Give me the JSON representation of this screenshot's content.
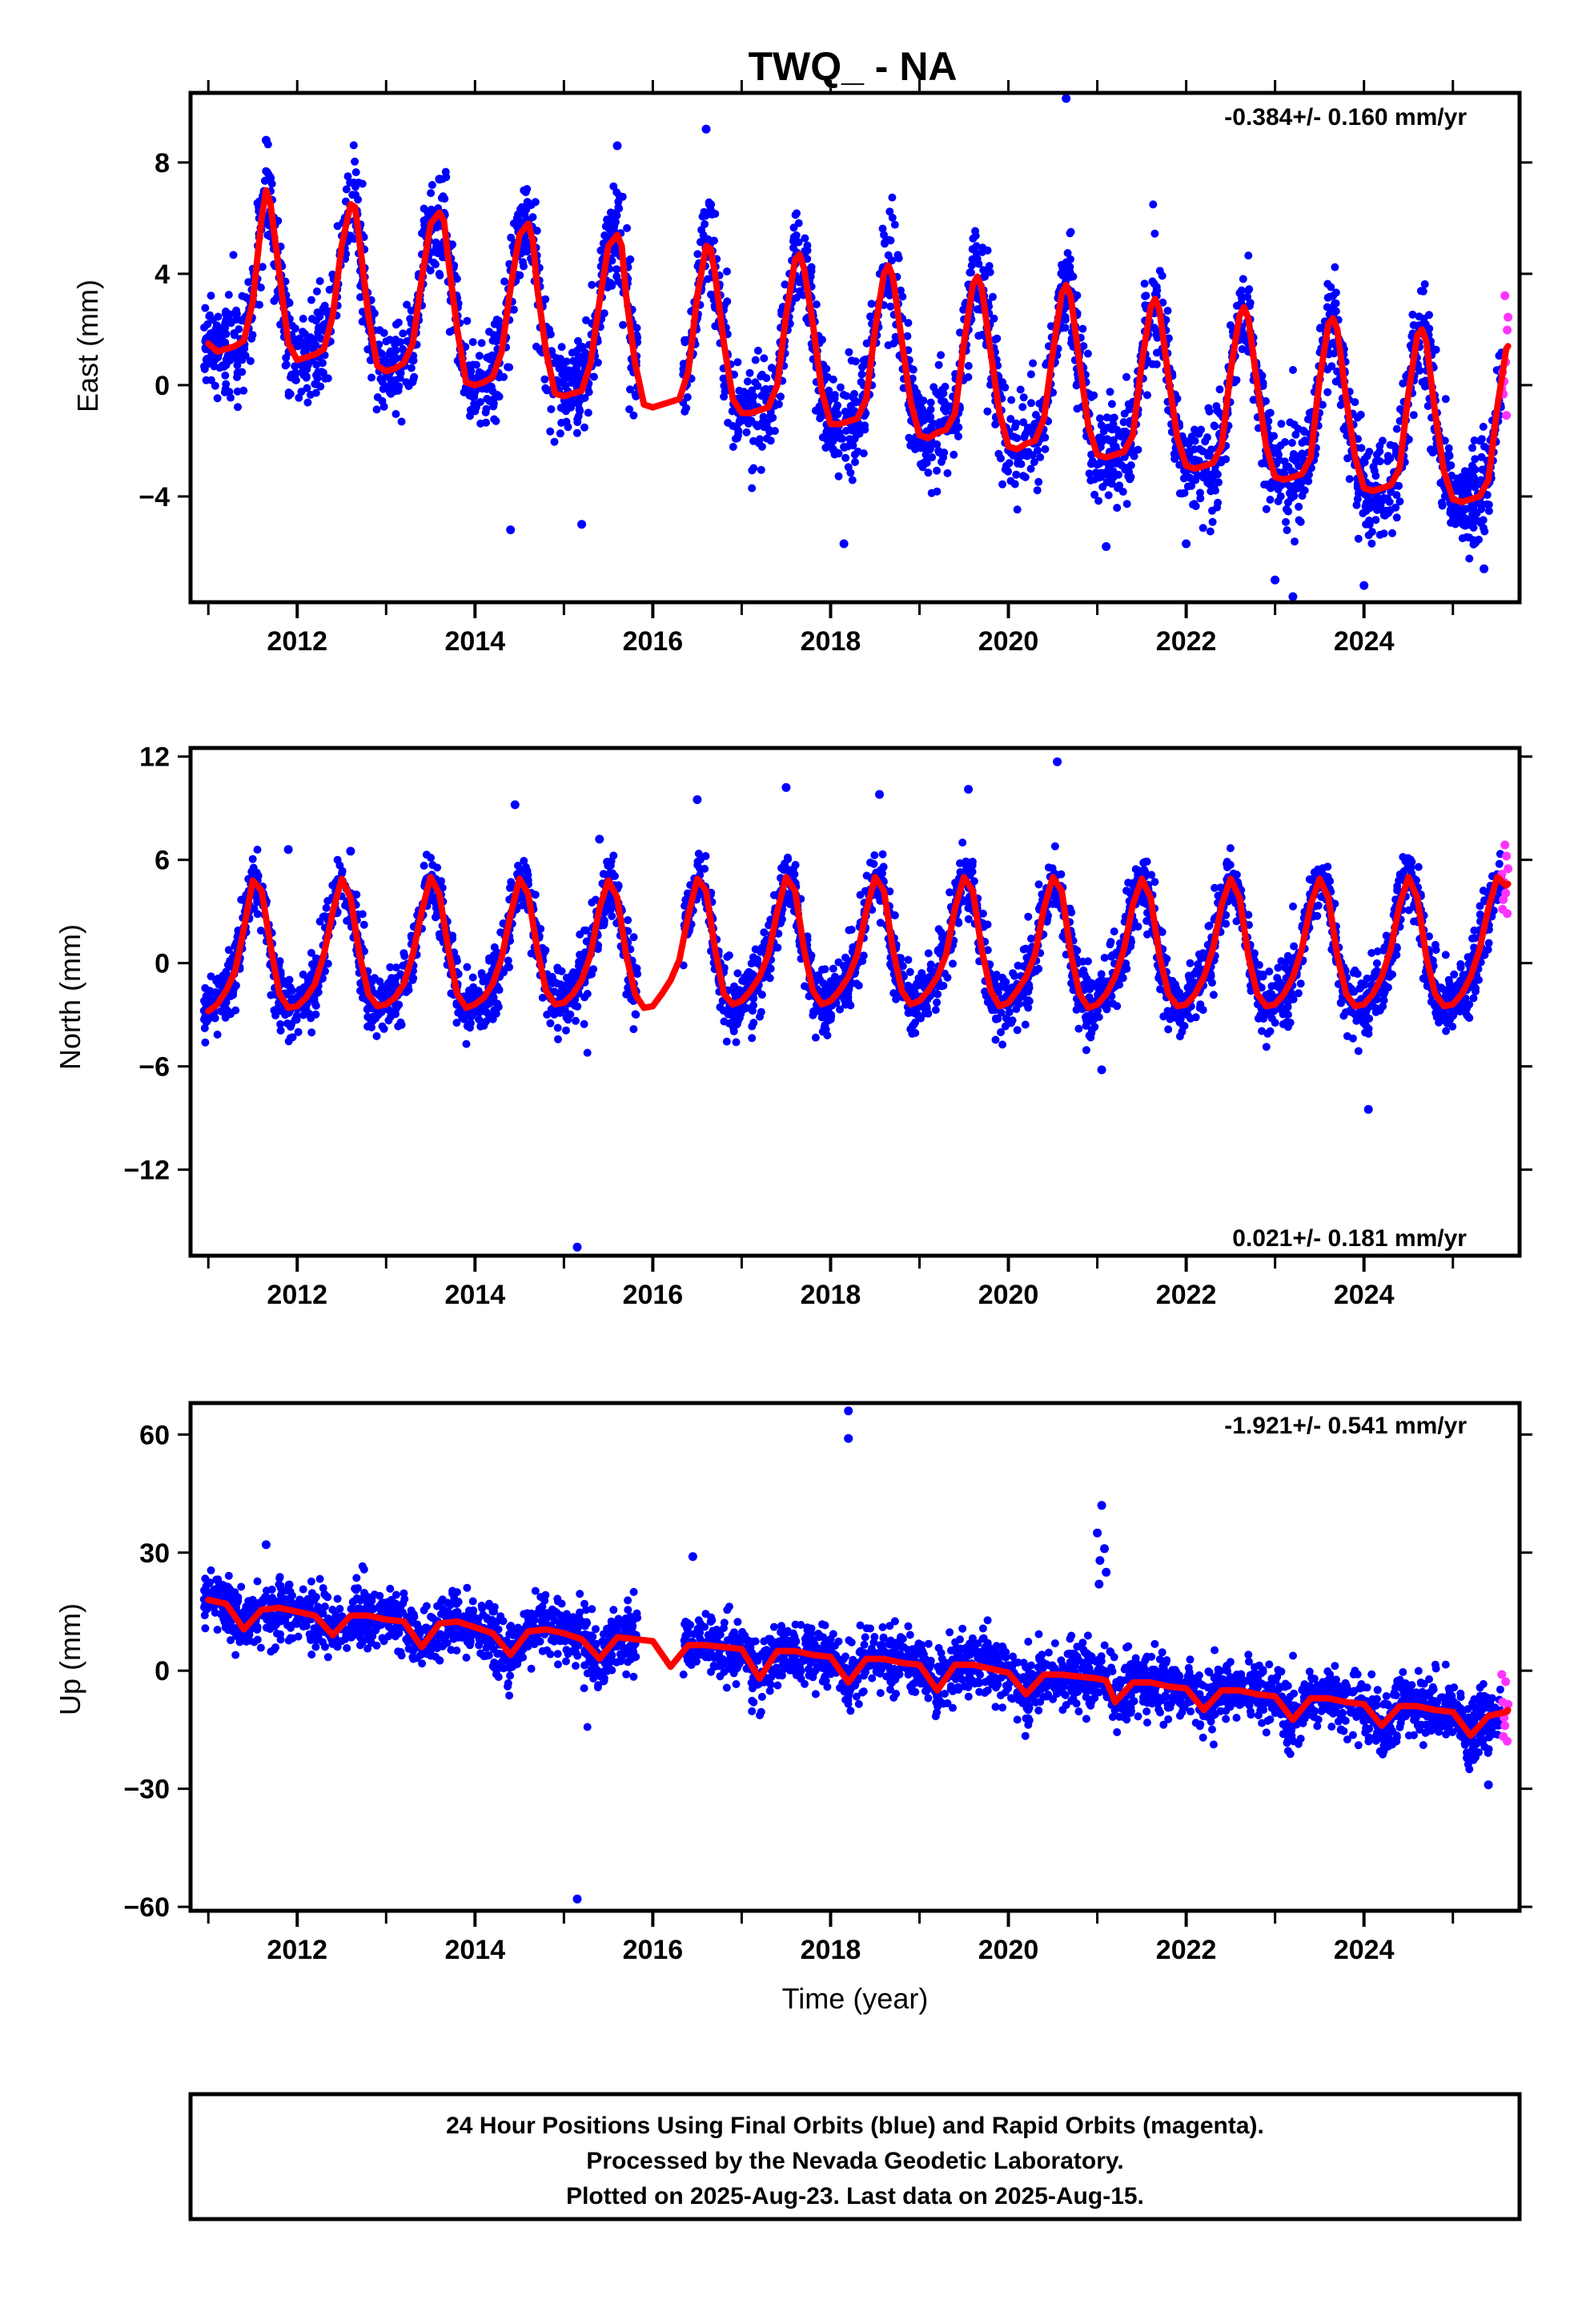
{
  "figure": {
    "title": "TWQ_ - NA",
    "x_label": "Time (year)",
    "footer": [
      "24 Hour Positions Using Final Orbits (blue) and Rapid Orbits (magenta).",
      "Processed by the Nevada Geodetic Laboratory.",
      "Plotted on 2025-Aug-23. Last data on 2025-Aug-15."
    ],
    "colors": {
      "final": "#0000ff",
      "rapid": "#ff33ff",
      "model": "#ff0000",
      "frame": "#000000"
    }
  },
  "chart_data": [
    {
      "type": "scatter",
      "component": "east",
      "ylabel": "East (mm)",
      "rate_label": "-0.384+/- 0.160 mm/yr",
      "rate_position": "top-right",
      "xlim": [
        2010.8,
        2025.75
      ],
      "ylim": [
        -7.8,
        10.5
      ],
      "x_ticks": [
        2012,
        2014,
        2016,
        2018,
        2020,
        2022,
        2024
      ],
      "y_ticks": [
        -4,
        0,
        4,
        8
      ],
      "data_start": 2010.95,
      "rapid_start": 2025.55,
      "data_end": 2025.62,
      "gaps": [
        [
          2015.83,
          2016.34
        ]
      ],
      "model": {
        "offset": 1.5,
        "rate_mm_per_yr": -0.384,
        "annual_amplitude": 2.9,
        "annual_peak": 2011.65,
        "semiannual_amplitude": 1.2,
        "semiannual_peak": 2011.65,
        "amplitude_trend": -0.05,
        "x": [
          2011.0,
          2011.1,
          2011.2,
          2011.3,
          2011.4,
          2011.5,
          2011.6,
          2011.65,
          2011.7,
          2011.8,
          2011.9,
          2012.0,
          2012.1,
          2012.2,
          2012.3,
          2012.4,
          2012.5,
          2012.6,
          2012.65,
          2012.7,
          2012.8,
          2012.9,
          2013.0,
          2013.1,
          2013.2,
          2013.3,
          2013.4,
          2013.5,
          2013.6,
          2013.65,
          2013.7,
          2013.8,
          2013.9,
          2014.0,
          2014.1,
          2014.2,
          2014.3,
          2014.4,
          2014.5,
          2014.6,
          2014.65,
          2014.7,
          2014.8,
          2014.9,
          2015.0,
          2015.1,
          2015.2,
          2015.3,
          2015.4,
          2015.5,
          2015.6,
          2015.65,
          2015.7,
          2015.8,
          2015.9,
          2016.0,
          2016.1,
          2016.2,
          2016.3,
          2016.4,
          2016.5,
          2016.6,
          2016.65,
          2016.7,
          2016.8,
          2016.9,
          2017.0,
          2017.1,
          2017.2,
          2017.3,
          2017.4,
          2017.5,
          2017.6,
          2017.65,
          2017.7,
          2017.8,
          2017.9,
          2018.0,
          2018.1,
          2018.2,
          2018.3,
          2018.4,
          2018.5,
          2018.6,
          2018.65,
          2018.7,
          2018.8,
          2018.9,
          2019.0,
          2019.1,
          2019.2,
          2019.3,
          2019.4,
          2019.5,
          2019.6,
          2019.65,
          2019.7,
          2019.8,
          2019.9,
          2020.0,
          2020.1,
          2020.2,
          2020.3,
          2020.4,
          2020.5,
          2020.6,
          2020.65,
          2020.7,
          2020.8,
          2020.9,
          2021.0,
          2021.1,
          2021.2,
          2021.3,
          2021.4,
          2021.5,
          2021.6,
          2021.65,
          2021.7,
          2021.8,
          2021.9,
          2022.0,
          2022.1,
          2022.2,
          2022.3,
          2022.4,
          2022.5,
          2022.6,
          2022.65,
          2022.7,
          2022.8,
          2022.9,
          2023.0,
          2023.1,
          2023.2,
          2023.3,
          2023.4,
          2023.5,
          2023.6,
          2023.65,
          2023.7,
          2023.8,
          2023.9,
          2024.0,
          2024.1,
          2024.2,
          2024.3,
          2024.4,
          2024.5,
          2024.6,
          2024.65,
          2024.7,
          2024.8,
          2024.9,
          2025.0,
          2025.1,
          2025.2,
          2025.3,
          2025.4,
          2025.5,
          2025.6,
          2025.62
        ],
        "y": [
          1.5,
          1.2,
          1.3,
          1.4,
          1.6,
          3.0,
          6.0,
          7.0,
          6.5,
          4.0,
          1.5,
          0.9,
          1.0,
          1.1,
          1.3,
          2.5,
          5.0,
          6.5,
          6.4,
          5.2,
          2.5,
          0.7,
          0.5,
          0.6,
          0.8,
          1.5,
          3.8,
          5.8,
          6.2,
          5.9,
          4.5,
          2.0,
          0.1,
          0.0,
          0.1,
          0.3,
          1.2,
          3.5,
          5.4,
          5.8,
          5.2,
          3.5,
          1.2,
          -0.3,
          -0.4,
          -0.3,
          -0.2,
          0.8,
          3.0,
          5.0,
          5.4,
          5.0,
          3.2,
          0.8,
          -0.7,
          -0.8,
          -0.7,
          -0.6,
          -0.5,
          0.5,
          3.2,
          5.0,
          4.9,
          4.0,
          1.5,
          -0.5,
          -1.0,
          -1.0,
          -0.9,
          -0.8,
          0.0,
          2.5,
          4.5,
          4.7,
          4.2,
          2.2,
          -0.2,
          -1.4,
          -1.4,
          -1.3,
          -1.2,
          -0.5,
          2.0,
          4.0,
          4.3,
          3.9,
          1.6,
          -0.6,
          -1.8,
          -1.9,
          -1.7,
          -1.6,
          -1.0,
          1.5,
          3.6,
          3.9,
          3.5,
          1.2,
          -1.0,
          -2.2,
          -2.3,
          -2.1,
          -2.0,
          -1.2,
          1.2,
          3.3,
          3.6,
          3.2,
          0.8,
          -1.5,
          -2.5,
          -2.6,
          -2.5,
          -2.4,
          -1.8,
          0.8,
          2.8,
          3.1,
          2.7,
          0.3,
          -1.9,
          -2.9,
          -3.0,
          -2.9,
          -2.8,
          -2.2,
          0.5,
          2.5,
          2.8,
          2.4,
          0.0,
          -2.2,
          -3.3,
          -3.4,
          -3.3,
          -3.2,
          -2.6,
          0.2,
          2.2,
          2.4,
          2.0,
          -0.5,
          -2.6,
          -3.7,
          -3.8,
          -3.7,
          -3.6,
          -3.0,
          -0.3,
          1.8,
          2.0,
          1.6,
          -1.0,
          -3.1,
          -4.1,
          -4.2,
          -4.1,
          -4.0,
          -3.4,
          -0.8,
          1.3,
          1.4
        ]
      },
      "scatter_params": {
        "count": 3600,
        "noise": 0.85,
        "outliers": [
          [
            2011.65,
            8.8
          ],
          [
            2013.6,
            7.4
          ],
          [
            2014.4,
            -5.2
          ],
          [
            2015.2,
            -5.0
          ],
          [
            2015.6,
            8.6
          ],
          [
            2016.6,
            9.2
          ],
          [
            2018.15,
            -5.7
          ],
          [
            2020.65,
            10.3
          ],
          [
            2021.1,
            -5.8
          ],
          [
            2022.0,
            -5.7
          ],
          [
            2023.0,
            -7.0
          ],
          [
            2023.2,
            -7.6
          ],
          [
            2024.0,
            -7.2
          ],
          [
            2025.35,
            -6.6
          ]
        ]
      }
    },
    {
      "type": "scatter",
      "component": "north",
      "ylabel": "North (mm)",
      "rate_label": "0.021+/- 0.181 mm/yr",
      "rate_position": "bottom-right",
      "xlim": [
        2010.8,
        2025.75
      ],
      "ylim": [
        -17.0,
        12.5
      ],
      "x_ticks": [
        2012,
        2014,
        2016,
        2018,
        2020,
        2022,
        2024
      ],
      "y_ticks": [
        -12,
        -6,
        0,
        6,
        12
      ],
      "data_start": 2010.95,
      "rapid_start": 2025.55,
      "data_end": 2025.62,
      "gaps": [
        [
          2015.83,
          2016.34
        ]
      ],
      "model": {
        "offset": 1.2,
        "rate_mm_per_yr": 0.021,
        "annual_amplitude": 3.7,
        "annual_peak": 2011.5,
        "semiannual_amplitude": 0.6,
        "semiannual_peak": 2011.5,
        "amplitude_trend": 0.0,
        "x": [
          2011.0,
          2011.1,
          2011.2,
          2011.3,
          2011.4,
          2011.5,
          2011.6,
          2011.7,
          2011.8,
          2011.9,
          2012.0,
          2012.1,
          2012.2,
          2012.3,
          2012.4,
          2012.5,
          2012.6,
          2012.7,
          2012.8,
          2012.9,
          2013.0,
          2013.1,
          2013.2,
          2013.3,
          2013.4,
          2013.5,
          2013.6,
          2013.7,
          2013.8,
          2013.9,
          2014.0,
          2014.1,
          2014.2,
          2014.3,
          2014.4,
          2014.5,
          2014.6,
          2014.7,
          2014.8,
          2014.9,
          2015.0,
          2015.1,
          2015.2,
          2015.3,
          2015.4,
          2015.5,
          2015.6,
          2015.7,
          2015.8,
          2015.9,
          2016.0,
          2016.1,
          2016.2,
          2016.3,
          2016.4,
          2016.5,
          2016.6,
          2016.7,
          2016.8,
          2016.9,
          2017.0,
          2017.1,
          2017.2,
          2017.3,
          2017.4,
          2017.5,
          2017.6,
          2017.7,
          2017.8,
          2017.9,
          2018.0,
          2018.1,
          2018.2,
          2018.3,
          2018.4,
          2018.5,
          2018.6,
          2018.7,
          2018.8,
          2018.9,
          2019.0,
          2019.1,
          2019.2,
          2019.3,
          2019.4,
          2019.5,
          2019.6,
          2019.7,
          2019.8,
          2019.9,
          2020.0,
          2020.1,
          2020.2,
          2020.3,
          2020.4,
          2020.5,
          2020.6,
          2020.7,
          2020.8,
          2020.9,
          2021.0,
          2021.1,
          2021.2,
          2021.3,
          2021.4,
          2021.5,
          2021.6,
          2021.7,
          2021.8,
          2021.9,
          2022.0,
          2022.1,
          2022.2,
          2022.3,
          2022.4,
          2022.5,
          2022.6,
          2022.7,
          2022.8,
          2022.9,
          2023.0,
          2023.1,
          2023.2,
          2023.3,
          2023.4,
          2023.5,
          2023.6,
          2023.7,
          2023.8,
          2023.9,
          2024.0,
          2024.1,
          2024.2,
          2024.3,
          2024.4,
          2024.5,
          2024.6,
          2024.7,
          2024.8,
          2024.9,
          2025.0,
          2025.1,
          2025.2,
          2025.3,
          2025.4,
          2025.5,
          2025.6,
          2025.62
        ],
        "y": [
          -2.8,
          -2.4,
          -1.6,
          -0.5,
          2.0,
          4.8,
          4.2,
          1.0,
          -1.8,
          -2.6,
          -2.5,
          -2.0,
          -1.2,
          0.5,
          3.0,
          4.9,
          3.8,
          0.5,
          -1.8,
          -2.5,
          -2.4,
          -2.0,
          -1.2,
          0.5,
          3.0,
          5.0,
          4.0,
          0.8,
          -1.8,
          -2.6,
          -2.4,
          -2.0,
          -1.2,
          0.3,
          2.8,
          4.9,
          4.0,
          0.8,
          -1.6,
          -2.4,
          -2.3,
          -1.8,
          -1.0,
          0.5,
          3.2,
          4.8,
          3.8,
          0.5,
          -1.8,
          -2.6,
          -2.5,
          -1.8,
          -1.0,
          0.2,
          2.8,
          4.9,
          4.2,
          0.8,
          -1.8,
          -2.4,
          -2.2,
          -1.6,
          -0.8,
          0.5,
          3.0,
          5.0,
          4.2,
          0.8,
          -1.6,
          -2.4,
          -2.2,
          -1.6,
          -0.8,
          0.5,
          3.0,
          5.0,
          4.2,
          0.8,
          -1.6,
          -2.4,
          -2.2,
          -1.6,
          -0.8,
          0.5,
          3.2,
          5.0,
          4.2,
          0.8,
          -1.6,
          -2.5,
          -2.3,
          -1.6,
          -0.8,
          0.5,
          3.2,
          5.0,
          4.2,
          0.6,
          -1.8,
          -2.6,
          -2.4,
          -1.8,
          -0.8,
          0.8,
          3.4,
          4.9,
          3.8,
          0.4,
          -1.8,
          -2.5,
          -2.4,
          -1.8,
          -0.8,
          0.8,
          3.4,
          4.9,
          3.8,
          0.4,
          -1.8,
          -2.5,
          -2.4,
          -1.8,
          -0.8,
          0.8,
          3.4,
          4.9,
          3.8,
          0.4,
          -1.8,
          -2.5,
          -2.4,
          -1.8,
          -0.8,
          0.8,
          3.4,
          5.0,
          3.8,
          0.4,
          -1.8,
          -2.5,
          -2.4,
          -1.8,
          -0.8,
          0.8,
          3.2,
          5.0,
          4.5,
          4.6
        ]
      },
      "scatter_params": {
        "count": 3600,
        "noise": 0.9,
        "outliers": [
          [
            2011.9,
            6.6
          ],
          [
            2012.6,
            6.5
          ],
          [
            2014.45,
            9.2
          ],
          [
            2015.4,
            7.2
          ],
          [
            2016.5,
            9.5
          ],
          [
            2017.5,
            10.2
          ],
          [
            2018.55,
            9.8
          ],
          [
            2019.55,
            10.1
          ],
          [
            2020.55,
            11.7
          ],
          [
            2021.05,
            -6.2
          ],
          [
            2024.05,
            -8.5
          ],
          [
            2015.15,
            -16.5
          ]
        ]
      }
    },
    {
      "type": "scatter",
      "component": "up",
      "ylabel": "Up (mm)",
      "rate_label": "-1.921+/- 0.541 mm/yr",
      "rate_position": "top-right",
      "xlim": [
        2010.8,
        2025.75
      ],
      "ylim": [
        -61.0,
        68.0
      ],
      "x_ticks": [
        2012,
        2014,
        2016,
        2018,
        2020,
        2022,
        2024
      ],
      "y_ticks": [
        -60,
        -30,
        0,
        30,
        60
      ],
      "data_start": 2010.95,
      "rapid_start": 2025.55,
      "data_end": 2025.62,
      "gaps": [
        [
          2015.83,
          2016.34
        ]
      ],
      "model": {
        "offset": 16.0,
        "rate_mm_per_yr": -1.921,
        "annual_amplitude": 3.5,
        "annual_peak": 2011.0,
        "semiannual_amplitude": 0.8,
        "semiannual_peak": 2011.0,
        "amplitude_trend": 0.0,
        "x": [
          2011.0,
          2011.2,
          2011.4,
          2011.6,
          2011.8,
          2012.0,
          2012.2,
          2012.4,
          2012.6,
          2012.8,
          2013.0,
          2013.2,
          2013.4,
          2013.6,
          2013.8,
          2014.0,
          2014.2,
          2014.4,
          2014.6,
          2014.8,
          2015.0,
          2015.2,
          2015.4,
          2015.6,
          2015.8,
          2016.0,
          2016.2,
          2016.4,
          2016.6,
          2016.8,
          2017.0,
          2017.2,
          2017.4,
          2017.6,
          2017.8,
          2018.0,
          2018.2,
          2018.4,
          2018.6,
          2018.8,
          2019.0,
          2019.2,
          2019.4,
          2019.6,
          2019.8,
          2020.0,
          2020.2,
          2020.4,
          2020.6,
          2020.8,
          2021.0,
          2021.1,
          2021.2,
          2021.4,
          2021.6,
          2021.8,
          2022.0,
          2022.2,
          2022.4,
          2022.6,
          2022.8,
          2023.0,
          2023.2,
          2023.4,
          2023.6,
          2023.8,
          2024.0,
          2024.2,
          2024.4,
          2024.6,
          2024.8,
          2025.0,
          2025.2,
          2025.4,
          2025.6,
          2025.62
        ],
        "y": [
          18.0,
          17.0,
          10.5,
          15.5,
          16.0,
          15.0,
          14.0,
          9.0,
          14.0,
          14.0,
          13.0,
          12.5,
          6.0,
          12.0,
          12.5,
          11.0,
          9.5,
          4.0,
          10.0,
          10.5,
          9.5,
          8.0,
          3.0,
          8.5,
          8.0,
          7.5,
          1.0,
          6.5,
          6.5,
          6.0,
          5.5,
          -2.0,
          5.0,
          5.0,
          4.0,
          3.5,
          -3.0,
          3.0,
          3.0,
          2.0,
          1.5,
          -5.0,
          1.5,
          1.5,
          0.5,
          -0.5,
          -6.0,
          -1.0,
          -1.0,
          -1.5,
          -2.0,
          -2.5,
          -8.0,
          -3.0,
          -3.0,
          -4.0,
          -4.5,
          -10.0,
          -5.0,
          -5.0,
          -6.0,
          -6.5,
          -12.5,
          -7.0,
          -7.0,
          -8.0,
          -8.5,
          -14.0,
          -9.0,
          -9.0,
          -10.0,
          -10.5,
          -16.5,
          -11.5,
          -10.5,
          -10.0
        ]
      },
      "scatter_params": {
        "count": 3600,
        "noise": 3.6,
        "outliers": [
          [
            2011.65,
            32.0
          ],
          [
            2016.45,
            29.0
          ],
          [
            2018.2,
            66.0
          ],
          [
            2018.2,
            59.0
          ],
          [
            2021.05,
            42.0
          ],
          [
            2021.0,
            35.0
          ],
          [
            2021.08,
            31.0
          ],
          [
            2021.03,
            28.0
          ],
          [
            2021.1,
            25.0
          ],
          [
            2021.02,
            22.0
          ],
          [
            2015.15,
            -58.0
          ],
          [
            2025.4,
            -29.0
          ]
        ]
      }
    }
  ]
}
